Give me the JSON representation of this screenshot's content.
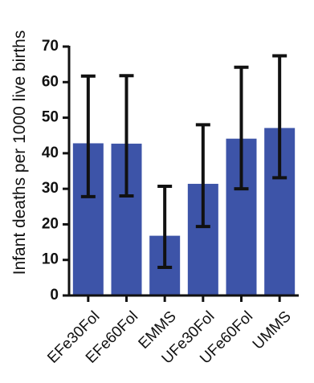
{
  "chart_data": {
    "type": "bar",
    "title": "",
    "xlabel": "",
    "ylabel": "Infant deaths per 1000 live births",
    "categories": [
      "EFe30Fol",
      "EFe60Fol",
      "EMMS",
      "UFe30Fol",
      "UFe60Fol",
      "UMMS"
    ],
    "values": [
      42.8,
      42.7,
      16.8,
      31.4,
      44.1,
      47.1
    ],
    "error_bars": {
      "lower": [
        27.8,
        28.0,
        7.9,
        19.4,
        30.0,
        33.1
      ],
      "upper": [
        61.7,
        61.8,
        30.7,
        48.0,
        64.2,
        67.4
      ]
    },
    "ylim": [
      0,
      70
    ],
    "yticks": [
      0,
      10,
      20,
      30,
      40,
      50,
      60,
      70
    ],
    "grid": false,
    "legend": "none",
    "colors": {
      "bar": "#3d54a8",
      "error": "#111111",
      "axis": "#111111"
    }
  }
}
